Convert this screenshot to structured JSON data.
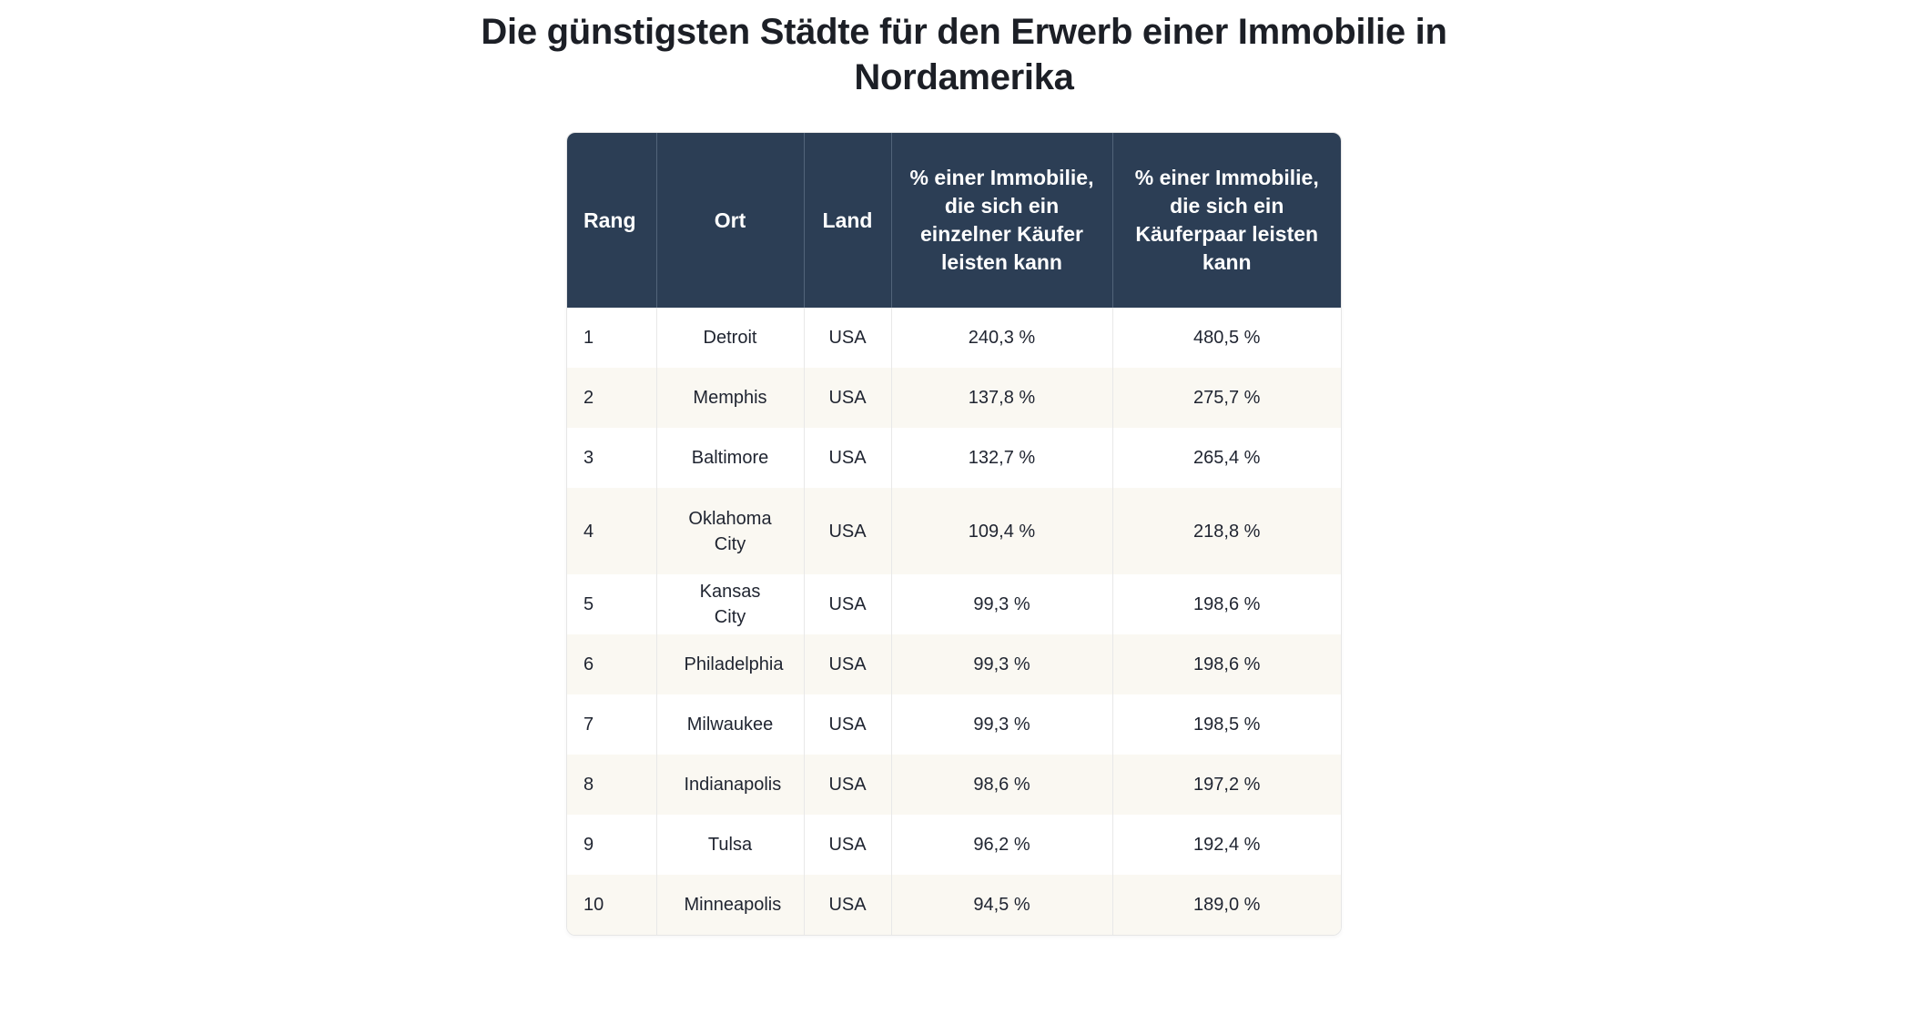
{
  "title": "Die günstigsten Städte für den Erwerb einer Immobilie in Nordamerika",
  "table": {
    "headers": [
      "Rang",
      "Ort",
      "Land",
      "% einer Immobilie, die sich ein einzelner Käufer leisten kann",
      "% einer Immobilie, die sich ein Käuferpaar leisten kann"
    ],
    "rows": [
      [
        "1",
        "Detroit",
        "USA",
        "240,3 %",
        "480,5 %"
      ],
      [
        "2",
        "Memphis",
        "USA",
        "137,8 %",
        "275,7 %"
      ],
      [
        "3",
        "Baltimore",
        "USA",
        "132,7 %",
        "265,4 %"
      ],
      [
        "4",
        "Oklahoma City",
        "USA",
        "109,4 %",
        "218,8 %"
      ],
      [
        "5",
        "Kansas City",
        "USA",
        "99,3 %",
        "198,6 %"
      ],
      [
        "6",
        "Philadelphia",
        "USA",
        "99,3 %",
        "198,6 %"
      ],
      [
        "7",
        "Milwaukee",
        "USA",
        "99,3 %",
        "198,5 %"
      ],
      [
        "8",
        "Indianapolis",
        "USA",
        "98,6 %",
        "197,2 %"
      ],
      [
        "9",
        "Tulsa",
        "USA",
        "96,2 %",
        "192,4 %"
      ],
      [
        "10",
        "Minneapolis",
        "USA",
        "94,5 %",
        "189,0 %"
      ]
    ]
  },
  "colors": {
    "header_bg": "#2c3e55",
    "alt_row_bg": "#faf8f2"
  }
}
